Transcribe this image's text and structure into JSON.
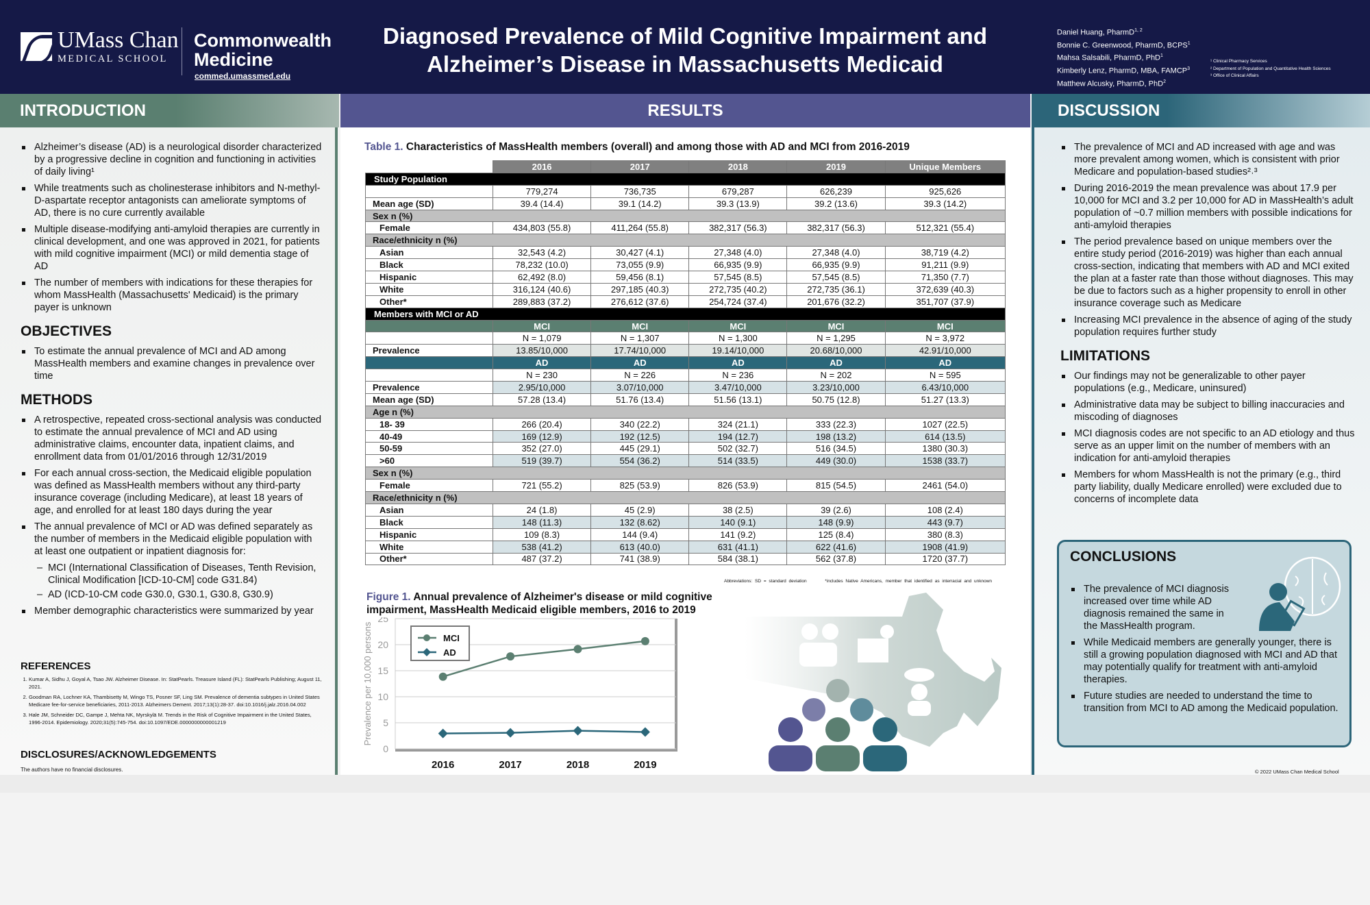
{
  "header": {
    "logo_line1": "UMass Chan",
    "logo_line2": "MEDICAL SCHOOL",
    "partner_line1": "Commonwealth",
    "partner_line2": "Medicine",
    "partner_url": "commed.umassmed.edu",
    "title_line1": "Diagnosed Prevalence of Mild Cognitive Impairment and",
    "title_line2": "Alzheimer’s Disease in Massachusetts Medicaid",
    "authors": [
      {
        "name": "Daniel Huang, PharmD",
        "sup": "1, 2"
      },
      {
        "name": "Bonnie C. Greenwood, PharmD, BCPS",
        "sup": "1"
      },
      {
        "name": "Mahsa Salsabili, PharmD, PhD",
        "sup": "1"
      },
      {
        "name": "Kimberly Lenz, PharmD, MBA, FAMCP",
        "sup": "3"
      },
      {
        "name": "Matthew Alcusky, PharmD, PhD",
        "sup": "2"
      }
    ],
    "affiliations": [
      "¹ Clinical Pharmacy Services",
      "² Department of Population and Quantitative Health Sciences",
      "³ Office of Clinical Affairs"
    ]
  },
  "sections": {
    "introduction": "INTRODUCTION",
    "results": "RESULTS",
    "discussion": "DISCUSSION"
  },
  "introduction": {
    "bullets": [
      "Alzheimer’s disease (AD) is a neurological disorder characterized by a progressive decline in cognition and functioning in activities of daily living¹",
      "While treatments such as cholinesterase inhibitors and N-methyl-D-aspartate receptor antagonists can ameliorate symptoms of AD, there is no cure currently available",
      "Multiple disease-modifying anti-amyloid therapies are currently in clinical development, and one was approved in 2021, for patients with mild cognitive impairment (MCI) or mild dementia stage of AD",
      "The number of members with indications for these therapies for whom MassHealth (Massachusetts' Medicaid) is the primary payer is unknown"
    ]
  },
  "objectives": {
    "heading": "OBJECTIVES",
    "bullets": [
      "To estimate the annual prevalence of MCI and AD among MassHealth members and examine changes in prevalence over time"
    ]
  },
  "methods": {
    "heading": "METHODS",
    "bullets": [
      "A retrospective, repeated cross-sectional analysis was conducted to estimate the annual prevalence of MCI and AD using administrative claims, encounter data, inpatient claims, and enrollment data from 01/01/2016 through 12/31/2019",
      "For each annual cross-section, the Medicaid eligible population was defined as MassHealth members without any third-party insurance coverage (including Medicare), at least 18 years of age, and enrolled for at least 180 days during the year",
      "The annual prevalence of MCI or AD was defined separately as the number of members in the Medicaid eligible population with at least one outpatient or inpatient diagnosis for:",
      "Member demographic characteristics were summarized by year"
    ],
    "sub": [
      "MCI (International Classification of Diseases, Tenth Revision, Clinical Modification [ICD-10-CM] code G31.84)",
      "AD (ICD-10-CM code G30.0, G30.1, G30.8, G30.9)"
    ]
  },
  "references": {
    "heading": "REFERENCES",
    "items": [
      "Kumar A, Sidhu J, Goyal A, Tsao JW. Alzheimer Disease. In: StatPearls. Treasure Island (FL): StatPearls Publishing; August 11, 2021.",
      "Goodman RA, Lochner KA, Thambisetty M, Wingo TS, Posner SF, Ling SM. Prevalence of dementia subtypes in United States Medicare fee-for-service beneficiaries, 2011-2013. Alzheimers Dement. 2017;13(1):28-37. doi:10.1016/j.jalz.2016.04.002",
      "Hale JM, Schneider DC, Gampe J, Mehta NK, Myrskylä M. Trends in the Risk of Cognitive Impairment in the United States, 1996-2014. Epidemiology. 2020;31(5):745-754. doi:10.1097/EDE.0000000000001219"
    ]
  },
  "disclosures": {
    "heading": "DISCLOSURES/ACKNOWLEDGEMENTS",
    "text": "The authors have no financial disclosures."
  },
  "table": {
    "label": "Table 1.",
    "title": "Characteristics of MassHealth members (overall) and among those with AD and MCI from 2016-2019",
    "columns": [
      "2016",
      "2017",
      "2018",
      "2019",
      "Unique Members"
    ],
    "study_population": "Study Population",
    "n": [
      "779,274",
      "736,735",
      "679,287",
      "626,239",
      "925,626"
    ],
    "mean_age_label": "Mean age (SD)",
    "mean_age": [
      "39.4 (14.4)",
      "39.1 (14.2)",
      "39.3 (13.9)",
      "39.2 (13.6)",
      "39.3 (14.2)"
    ],
    "sex_label": "Sex n (%)",
    "female_label": "Female",
    "female": [
      "434,803 (55.8)",
      "411,264 (55.8)",
      "382,317 (56.3)",
      "382,317 (56.3)",
      "512,321 (55.4)"
    ],
    "race_label": "Race/ethnicity n (%)",
    "race": [
      {
        "label": "Asian",
        "values": [
          "32,543 (4.2)",
          "30,427 (4.1)",
          "27,348 (4.0)",
          "27,348 (4.0)",
          "38,719 (4.2)"
        ]
      },
      {
        "label": "Black",
        "values": [
          "78,232 (10.0)",
          "73,055 (9.9)",
          "66,935 (9.9)",
          "66,935 (9.9)",
          "91,211 (9.9)"
        ]
      },
      {
        "label": "Hispanic",
        "values": [
          "62,492 (8.0)",
          "59,456 (8.1)",
          "57,545 (8.5)",
          "57,545 (8.5)",
          "71,350 (7.7)"
        ]
      },
      {
        "label": "White",
        "values": [
          "316,124 (40.6)",
          "297,185 (40.3)",
          "272,735 (40.2)",
          "272,735 (36.1)",
          "372,639 (40.3)"
        ]
      },
      {
        "label": "Other*",
        "values": [
          "289,883 (37.2)",
          "276,612 (37.6)",
          "254,724 (37.4)",
          "201,676 (32.2)",
          "351,707 (37.9)"
        ]
      }
    ],
    "members_label": "Members with MCI or AD",
    "mci_label": "MCI",
    "mci_n": [
      "N = 1,079",
      "N = 1,307",
      "N = 1,300",
      "N = 1,295",
      "N = 3,972"
    ],
    "prevalence_label": "Prevalence",
    "mci_prev": [
      "13.85/10,000",
      "17.74/10,000",
      "19.14/10,000",
      "20.68/10,000",
      "42.91/10,000"
    ],
    "ad_label": "AD",
    "ad_n": [
      "N = 230",
      "N = 226",
      "N = 236",
      "N = 202",
      "N = 595"
    ],
    "ad_prev": [
      "2.95/10,000",
      "3.07/10,000",
      "3.47/10,000",
      "3.23/10,000",
      "6.43/10,000"
    ],
    "ad_mean_age": [
      "57.28 (13.4)",
      "51.76 (13.4)",
      "51.56 (13.1)",
      "50.75 (12.8)",
      "51.27 (13.3)"
    ],
    "age_label": "Age n (%)",
    "ages": [
      {
        "label": "18- 39",
        "values": [
          "266 (20.4)",
          "340 (22.2)",
          "324 (21.1)",
          "333 (22.3)",
          "1027 (22.5)"
        ]
      },
      {
        "label": "40-49",
        "values": [
          "169 (12.9)",
          "192 (12.5)",
          "194 (12.7)",
          "198 (13.2)",
          "614 (13.5)"
        ]
      },
      {
        "label": "50-59",
        "values": [
          "352 (27.0)",
          "445 (29.1)",
          "502 (32.7)",
          "516 (34.5)",
          "1380 (30.3)"
        ]
      },
      {
        "label": ">60",
        "values": [
          "519 (39.7)",
          "554 (36.2)",
          "514 (33.5)",
          "449 (30.0)",
          "1538 (33.7)"
        ]
      }
    ],
    "ad_female": [
      "721 (55.2)",
      "825 (53.9)",
      "826 (53.9)",
      "815 (54.5)",
      "2461 (54.0)"
    ],
    "ad_race": [
      {
        "label": "Asian",
        "values": [
          "24 (1.8)",
          "45 (2.9)",
          "38 (2.5)",
          "39 (2.6)",
          "108 (2.4)"
        ]
      },
      {
        "label": "Black",
        "values": [
          "148 (11.3)",
          "132 (8.62)",
          "140 (9.1)",
          "148 (9.9)",
          "443 (9.7)"
        ]
      },
      {
        "label": "Hispanic",
        "values": [
          "109 (8.3)",
          "144 (9.4)",
          "141 (9.2)",
          "125 (8.4)",
          "380 (8.3)"
        ]
      },
      {
        "label": "White",
        "values": [
          "538 (41.2)",
          "613 (40.0)",
          "631 (41.1)",
          "622 (41.6)",
          "1908 (41.9)"
        ]
      },
      {
        "label": "Other*",
        "values": [
          "487 (37.2)",
          "741 (38.9)",
          "584 (38.1)",
          "562 (37.8)",
          "1720 (37.7)"
        ]
      }
    ],
    "footnote_abbr": "Abbreviations: SD = standard deviation",
    "footnote_other": "*includes Native Americans, member that identified as interracial and unknown"
  },
  "figure": {
    "label": "Figure 1.",
    "title": "Annual prevalence of Alzheimer's disease or mild cognitive impairment, MassHealth Medicaid eligible members, 2016 to 2019"
  },
  "chart_data": {
    "type": "line",
    "title": "Annual prevalence of Alzheimer's disease or mild cognitive impairment, MassHealth Medicaid eligible members, 2016 to 2019",
    "xlabel": "",
    "ylabel": "Prevalence per 10,000 persons",
    "categories": [
      "2016",
      "2017",
      "2018",
      "2019"
    ],
    "ylim": [
      0,
      25
    ],
    "yticks": [
      0,
      5,
      10,
      15,
      20,
      25
    ],
    "grid": true,
    "legend": "top-left",
    "series": [
      {
        "name": "MCI",
        "values": [
          13.85,
          17.74,
          19.14,
          20.68
        ],
        "color": "#5b7f71",
        "marker": "circle"
      },
      {
        "name": "AD",
        "values": [
          2.95,
          3.07,
          3.47,
          3.23
        ],
        "color": "#2b677a",
        "marker": "diamond"
      }
    ]
  },
  "discussion": {
    "bullets": [
      "The prevalence of MCI and AD increased with age and was more prevalent among women, which is consistent with prior Medicare and population-based studies²˒³",
      "During 2016-2019 the mean prevalence was about 17.9 per 10,000 for MCI and 3.2 per 10,000 for AD in MassHealth’s adult population of ~0.7 million members with possible indications for anti-amyloid therapies",
      "The period prevalence based on unique members over the entire study period (2016-2019) was higher than each annual cross-section, indicating that members with AD and MCI exited the plan at a faster rate than those without diagnoses. This may be due to factors such as a higher propensity to enroll in other insurance coverage such as Medicare",
      "Increasing MCI prevalence in the absence of aging of the study population requires further study"
    ]
  },
  "limitations": {
    "heading": "LIMITATIONS",
    "bullets": [
      "Our findings may not be generalizable to other payer populations (e.g., Medicare, uninsured)",
      "Administrative data may be subject to billing inaccuracies and miscoding of diagnoses",
      "MCI diagnosis codes are not specific to an AD etiology and thus serve as an upper limit on the number of members with an indication for anti-amyloid therapies",
      "Members for whom MassHealth is not the primary (e.g., third party liability, dually Medicare enrolled) were excluded due to concerns of incomplete data"
    ]
  },
  "conclusions": {
    "heading": "CONCLUSIONS",
    "bullets": [
      "The prevalence of MCI diagnosis increased over time while AD diagnosis remained the same in the MassHealth program.",
      "While Medicaid members are generally younger, there is still a growing population diagnosed with MCI and AD that may potentially qualify for treatment with anti-amyloid therapies.",
      "Future studies are needed to understand the time to transition from MCI to AD among the Medicaid population."
    ]
  },
  "copyright": "© 2022 UMass Chan Medical School",
  "colors": {
    "navy": "#151947",
    "purple": "#535590",
    "green": "#5b7f71",
    "teal": "#2b677a"
  }
}
